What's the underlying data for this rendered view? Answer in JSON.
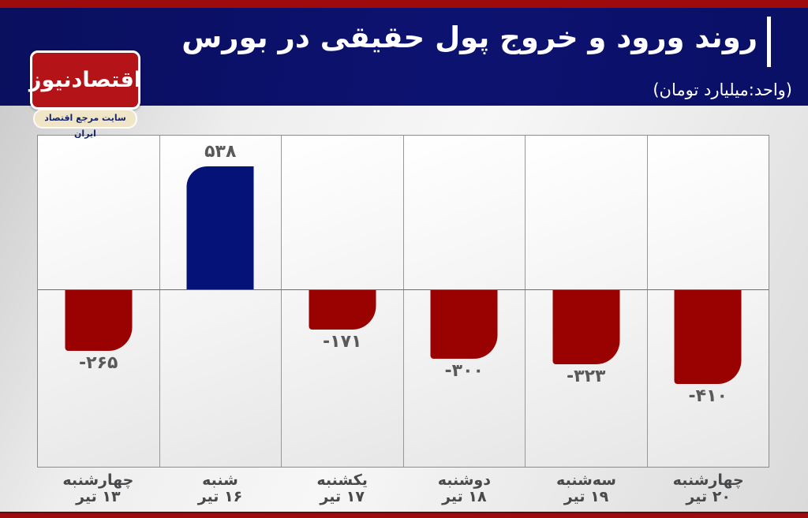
{
  "header": {
    "title": "روند ورود و خروج پول حقیقی در بورس",
    "subtitle": "(واحد:میلیارد تومان)"
  },
  "logo": {
    "name": "اقتصادنیوز",
    "tagline": "سایت مرجع اقتصاد ایران",
    "box_color": "#b41317",
    "tagline_bg": "#f1e5c8",
    "tagline_text_color": "#16256b"
  },
  "colors": {
    "top_strip": "#9e0b0c",
    "bottom_strip": "#9e0b0c",
    "header_bg": "#0b1168",
    "positive_bar": "#051378",
    "negative_bar": "#9a0202",
    "value_label": "#58595b",
    "axis_label": "#48494b"
  },
  "chart_data": {
    "type": "bar",
    "title": "روند ورود و خروج پول حقیقی در بورس",
    "unit": "میلیارد تومان",
    "categories": [
      {
        "day": "چهارشنبه",
        "date": "۱۳ تیر"
      },
      {
        "day": "شنبه",
        "date": "۱۶ تیر"
      },
      {
        "day": "یکشنبه",
        "date": "۱۷ تیر"
      },
      {
        "day": "دوشنبه",
        "date": "۱۸ تیر"
      },
      {
        "day": "سه‌شنبه",
        "date": "۱۹ تیر"
      },
      {
        "day": "چهارشنبه",
        "date": "۲۰ تیر"
      }
    ],
    "values": [
      -265,
      538,
      -171,
      -300,
      -323,
      -410
    ],
    "value_labels": [
      "-۲۶۵",
      "۵۳۸",
      "-۱۷۱",
      "-۳۰۰",
      "-۳۲۳",
      "-۴۱۰"
    ],
    "ylim": [
      -480,
      600
    ],
    "grid": "vertical-column-dividers",
    "legend": "none",
    "bar_color_positive": "#051378",
    "bar_color_negative": "#9a0202"
  }
}
